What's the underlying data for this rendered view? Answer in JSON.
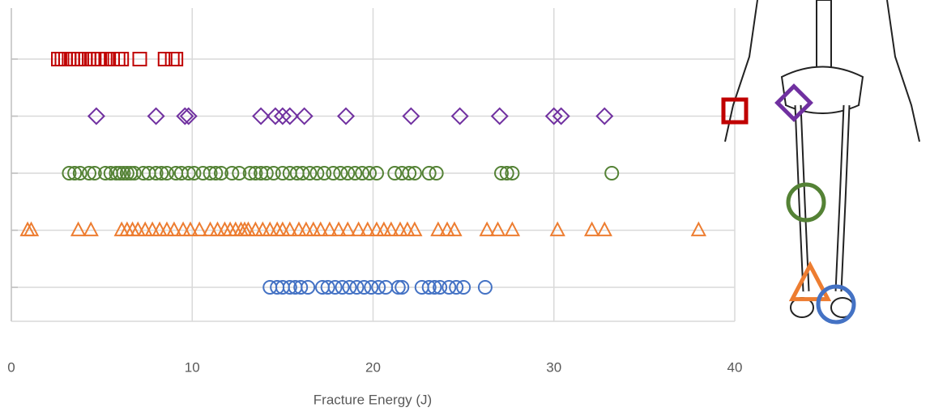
{
  "chart_data": {
    "type": "strip",
    "xlabel": "Fracture Energy (J)",
    "xlim": [
      0,
      40
    ],
    "xticks": [
      0,
      10,
      20,
      30,
      40
    ],
    "grid": true,
    "series": [
      {
        "color": "#c00000",
        "marker": "square",
        "values": [
          2.6,
          2.8,
          3.0,
          3.2,
          3.4,
          3.7,
          3.9,
          4.1,
          4.3,
          4.5,
          4.8,
          5.0,
          5.3,
          5.6,
          5.9,
          6.1,
          7.1,
          8.5,
          8.9,
          9.1
        ]
      },
      {
        "color": "#7030a0",
        "marker": "diamond",
        "values": [
          4.7,
          8.0,
          9.6,
          9.8,
          13.8,
          14.6,
          15.0,
          15.4,
          16.2,
          18.5,
          22.1,
          24.8,
          27.0,
          30.0,
          30.4,
          32.8
        ]
      },
      {
        "color": "#548235",
        "marker": "circle",
        "values": [
          3.2,
          3.5,
          3.8,
          4.3,
          4.6,
          5.2,
          5.5,
          5.8,
          6.0,
          6.2,
          6.4,
          6.6,
          6.8,
          7.3,
          7.6,
          8.0,
          8.3,
          8.6,
          9.1,
          9.4,
          9.8,
          10.1,
          10.6,
          11.0,
          11.3,
          11.6,
          12.2,
          12.6,
          13.2,
          13.5,
          13.8,
          14.1,
          14.5,
          15.0,
          15.4,
          15.8,
          16.1,
          16.5,
          16.9,
          17.3,
          17.8,
          18.2,
          18.6,
          19.0,
          19.4,
          19.8,
          20.2,
          21.2,
          21.6,
          22.0,
          22.3,
          23.1,
          23.5,
          27.1,
          27.4,
          27.7,
          33.2
        ]
      },
      {
        "color": "#ed7d31",
        "marker": "triangle",
        "values": [
          0.9,
          1.1,
          3.7,
          4.4,
          6.1,
          6.4,
          6.7,
          7.0,
          7.4,
          7.8,
          8.2,
          8.6,
          9.0,
          9.5,
          9.9,
          10.4,
          11.0,
          11.4,
          11.8,
          12.1,
          12.4,
          12.7,
          12.9,
          13.1,
          13.5,
          13.9,
          14.3,
          14.7,
          15.0,
          15.4,
          15.9,
          16.3,
          16.7,
          17.1,
          17.6,
          18.1,
          18.6,
          19.2,
          19.7,
          20.2,
          20.6,
          21.0,
          21.5,
          21.9,
          22.3,
          23.6,
          24.1,
          24.5,
          26.3,
          26.9,
          27.7,
          30.2,
          32.1,
          32.8,
          38.0
        ]
      },
      {
        "color": "#4472c4",
        "marker": "circle",
        "values": [
          14.3,
          14.7,
          15.0,
          15.4,
          15.7,
          16.0,
          16.4,
          17.2,
          17.5,
          17.9,
          18.3,
          18.7,
          19.1,
          19.5,
          19.9,
          20.3,
          20.7,
          21.4,
          21.6,
          22.7,
          23.1,
          23.4,
          23.7,
          24.2,
          24.6,
          25.0,
          26.2
        ]
      }
    ]
  }
}
